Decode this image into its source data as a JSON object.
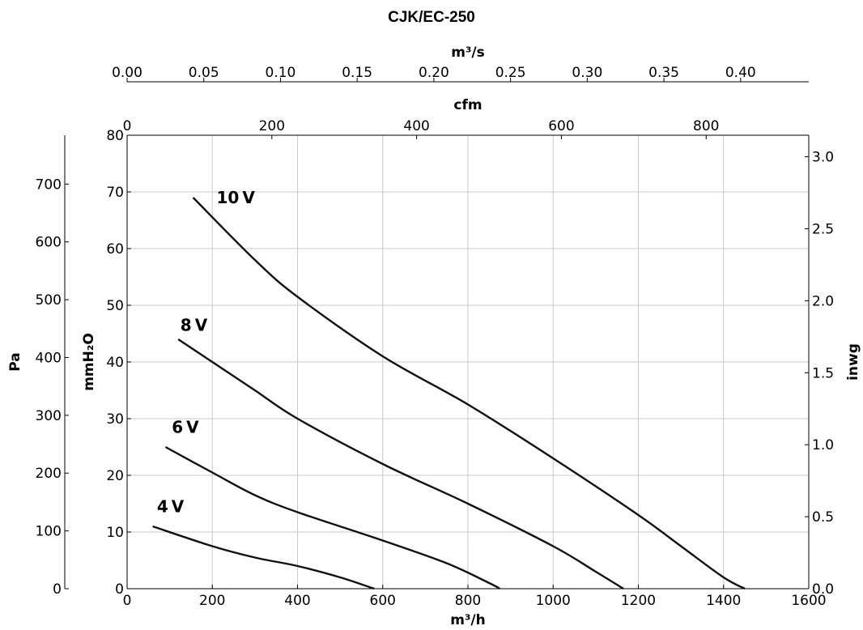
{
  "chart_data": {
    "type": "line",
    "title": "CJK/EC-250",
    "x_primary": {
      "label": "m³/h",
      "range": [
        0,
        1600
      ],
      "ticks": [
        0,
        200,
        400,
        600,
        800,
        1000,
        1200,
        1400,
        1600
      ],
      "tick_labels": [
        "0",
        "200",
        "400",
        "600",
        "800",
        "1000",
        "1200",
        "1400",
        "1600"
      ]
    },
    "x_top_cfm": {
      "label": "cfm",
      "ticks": [
        0,
        200,
        400,
        600,
        800
      ],
      "tick_labels": [
        "0",
        "200",
        "400",
        "600",
        "800"
      ]
    },
    "x_top_m3s": {
      "label": "m³/s",
      "ticks": [
        0.0,
        0.05,
        0.1,
        0.15,
        0.2,
        0.25,
        0.3,
        0.35,
        0.4
      ],
      "tick_labels": [
        "0.00",
        "0.05",
        "0.10",
        "0.15",
        "0.20",
        "0.25",
        "0.30",
        "0.35",
        "0.40"
      ]
    },
    "y_primary": {
      "label": "mmH₂O",
      "range": [
        0,
        80
      ],
      "ticks": [
        0,
        10,
        20,
        30,
        40,
        50,
        60,
        70,
        80
      ],
      "tick_labels": [
        "0",
        "10",
        "20",
        "30",
        "40",
        "50",
        "60",
        "70",
        "80"
      ]
    },
    "y_left_pa": {
      "label": "Pa",
      "ticks": [
        0,
        100,
        200,
        300,
        400,
        500,
        600,
        700
      ],
      "tick_labels": [
        "0",
        "100",
        "200",
        "300",
        "400",
        "500",
        "600",
        "700"
      ]
    },
    "y_right_inwg": {
      "label": "inwg",
      "ticks": [
        0.0,
        0.5,
        1.0,
        1.5,
        2.0,
        2.5,
        3.0
      ],
      "tick_labels": [
        "0.0",
        "0.5",
        "1.0",
        "1.5",
        "2.0",
        "2.5",
        "3.0"
      ]
    },
    "grid": true,
    "series": [
      {
        "name": "10V",
        "label_at": [
          210,
          68
        ],
        "points": [
          [
            155,
            69
          ],
          [
            300,
            58
          ],
          [
            400,
            51.5
          ],
          [
            600,
            41
          ],
          [
            800,
            32.5
          ],
          [
            1000,
            23
          ],
          [
            1200,
            13
          ],
          [
            1300,
            7.5
          ],
          [
            1400,
            2
          ],
          [
            1450,
            0
          ]
        ]
      },
      {
        "name": "8V",
        "label_at": [
          125,
          45.5
        ],
        "points": [
          [
            120,
            44
          ],
          [
            200,
            40
          ],
          [
            300,
            35
          ],
          [
            400,
            30
          ],
          [
            600,
            22
          ],
          [
            800,
            15
          ],
          [
            1000,
            7.5
          ],
          [
            1100,
            3
          ],
          [
            1165,
            0
          ]
        ]
      },
      {
        "name": "6V",
        "label_at": [
          105,
          27.5
        ],
        "points": [
          [
            90,
            25
          ],
          [
            200,
            20.5
          ],
          [
            300,
            16.5
          ],
          [
            400,
            13.5
          ],
          [
            600,
            8.5
          ],
          [
            750,
            4.5
          ],
          [
            850,
            1
          ],
          [
            875,
            0
          ]
        ]
      },
      {
        "name": "4V",
        "label_at": [
          70,
          13.5
        ],
        "points": [
          [
            60,
            11
          ],
          [
            200,
            7.5
          ],
          [
            300,
            5.5
          ],
          [
            400,
            4
          ],
          [
            500,
            2
          ],
          [
            580,
            0
          ]
        ]
      }
    ]
  }
}
